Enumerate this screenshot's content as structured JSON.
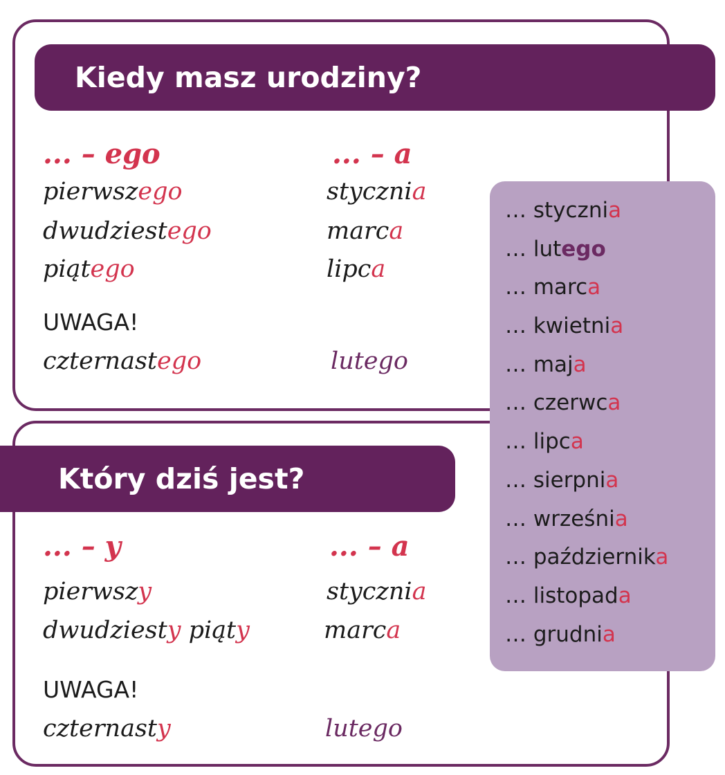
{
  "section1": {
    "title": "Kiedy masz urodziny?",
    "col1": {
      "header": "... – ego",
      "rows": [
        {
          "stem": "pierwsz",
          "suffix": "ego"
        },
        {
          "stem": "dwudziest",
          "suffix": "ego"
        },
        {
          "stem": "piąt",
          "suffix": "ego"
        }
      ],
      "note_label": "UWAGA!",
      "note": {
        "stem": "czternast",
        "suffix": "ego"
      }
    },
    "col2": {
      "header": "... – a",
      "rows": [
        {
          "stem": "styczni",
          "suffix": "a"
        },
        {
          "stem": "marc",
          "suffix": "a"
        },
        {
          "stem": "lipc",
          "suffix": "a"
        }
      ],
      "note": "lutego"
    }
  },
  "section2": {
    "title": "Który dziś jest?",
    "col1": {
      "header": "... – y",
      "rows": [
        {
          "stem": "pierwsz",
          "suffix": "y"
        },
        {
          "stem1": "dwudziest",
          "suffix1": "y",
          "stem2": " piąt",
          "suffix2": "y"
        }
      ],
      "note_label": "UWAGA!",
      "note": {
        "stem": "czternast",
        "suffix": "y"
      }
    },
    "col2": {
      "header": "... – a",
      "rows": [
        {
          "stem": "styczni",
          "suffix": "a"
        },
        {
          "stem": "marc",
          "suffix": "a"
        }
      ],
      "note": "lutego"
    }
  },
  "months": [
    {
      "prefix": "… styczni",
      "suffix": "a"
    },
    {
      "prefix": "… lut",
      "suffix": "ego"
    },
    {
      "prefix": "… marc",
      "suffix": "a"
    },
    {
      "prefix": "… kwietni",
      "suffix": "a"
    },
    {
      "prefix": "… maj",
      "suffix": "a"
    },
    {
      "prefix": "… czerwc",
      "suffix": "a"
    },
    {
      "prefix": "… lipc",
      "suffix": "a"
    },
    {
      "prefix": "… sierpni",
      "suffix": "a"
    },
    {
      "prefix": "… wrześni",
      "suffix": "a"
    },
    {
      "prefix": "… październik",
      "suffix": "a"
    },
    {
      "prefix": "… listopad",
      "suffix": "a"
    },
    {
      "prefix": "… grudni",
      "suffix": "a"
    }
  ],
  "colors": {
    "purple": "#63225c",
    "red": "#d3344e",
    "lilac": "#b8a1c2"
  }
}
